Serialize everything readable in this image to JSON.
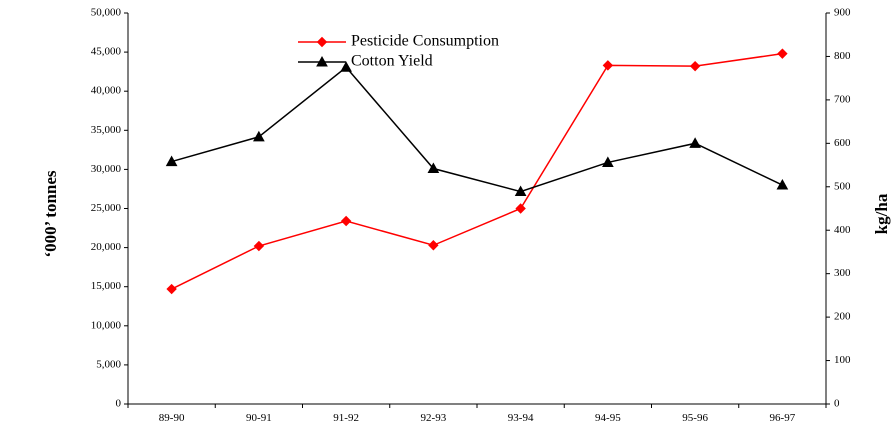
{
  "chart_data": {
    "type": "line",
    "title": "",
    "xlabel": "",
    "ylabel": "‘000’ tonnes",
    "y2label": "kg/ha",
    "categories": [
      "89-90",
      "90-91",
      "91-92",
      "92-93",
      "93-94",
      "94-95",
      "95-96",
      "96-97"
    ],
    "ylim": [
      0,
      50000
    ],
    "y2lim": [
      0,
      900
    ],
    "yticks": [
      0,
      5000,
      10000,
      15000,
      20000,
      25000,
      30000,
      35000,
      40000,
      45000,
      50000
    ],
    "yticklabels": [
      "0",
      "5,000",
      "10,000",
      "15,000",
      "20,000",
      "25,000",
      "30,000",
      "35,000",
      "40,000",
      "45,000",
      "50,000"
    ],
    "y2ticks": [
      0,
      100,
      200,
      300,
      400,
      500,
      600,
      700,
      800,
      900
    ],
    "y2ticklabels": [
      "0",
      "100",
      "200",
      "300",
      "400",
      "500",
      "600",
      "700",
      "800",
      "900"
    ],
    "grid": false,
    "legend_position": "top-center",
    "series": [
      {
        "name": "Pesticide Consumption",
        "axis": "left",
        "color": "#ff0000",
        "marker": "diamond",
        "values": [
          14700,
          20200,
          23400,
          20300,
          25000,
          43300,
          43200,
          44800
        ]
      },
      {
        "name": "Cotton Yield",
        "axis": "right",
        "color": "#000000",
        "marker": "triangle",
        "values": [
          558,
          615,
          775,
          542,
          489,
          556,
          600,
          504
        ]
      }
    ]
  }
}
